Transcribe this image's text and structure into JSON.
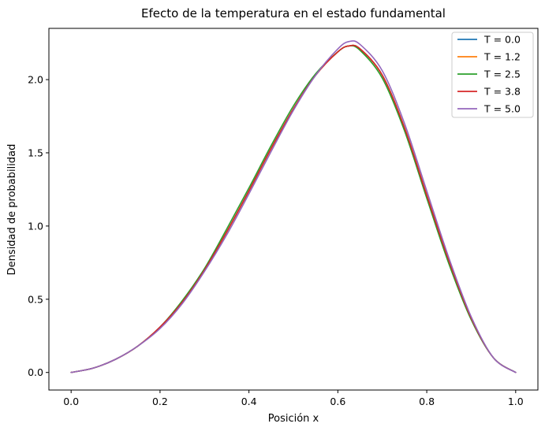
{
  "chart_data": {
    "type": "line",
    "title": "Efecto de la temperatura en el estado fundamental",
    "xlabel": "Posición x",
    "ylabel": "Densidad de probabilidad",
    "xlim": [
      -0.05,
      1.05
    ],
    "ylim": [
      -0.12,
      2.35
    ],
    "xticks": [
      0.0,
      0.2,
      0.4,
      0.6,
      0.8,
      1.0
    ],
    "xtick_labels": [
      "0.0",
      "0.2",
      "0.4",
      "0.6",
      "0.8",
      "1.0"
    ],
    "yticks": [
      0.0,
      0.5,
      1.0,
      1.5,
      2.0
    ],
    "ytick_labels": [
      "0.0",
      "0.5",
      "1.0",
      "1.5",
      "2.0"
    ],
    "grid": false,
    "legend_position": "top-right",
    "x": [
      0.0,
      0.05,
      0.1,
      0.15,
      0.2,
      0.25,
      0.3,
      0.35,
      0.4,
      0.45,
      0.5,
      0.55,
      0.6,
      0.625,
      0.65,
      0.7,
      0.75,
      0.8,
      0.85,
      0.9,
      0.95,
      1.0
    ],
    "series": [
      {
        "name": "T = 0.0",
        "color": "#1f77b4",
        "values": [
          0.0,
          0.03,
          0.09,
          0.18,
          0.31,
          0.48,
          0.7,
          0.96,
          1.24,
          1.53,
          1.8,
          2.03,
          2.19,
          2.23,
          2.21,
          2.03,
          1.67,
          1.21,
          0.76,
          0.37,
          0.1,
          0.0
        ]
      },
      {
        "name": "T = 1.2",
        "color": "#ff7f0e",
        "values": [
          0.0,
          0.03,
          0.09,
          0.18,
          0.31,
          0.48,
          0.7,
          0.96,
          1.24,
          1.53,
          1.8,
          2.03,
          2.19,
          2.23,
          2.21,
          2.03,
          1.67,
          1.21,
          0.76,
          0.37,
          0.1,
          0.0
        ]
      },
      {
        "name": "T = 2.5",
        "color": "#2ca02c",
        "values": [
          0.0,
          0.03,
          0.09,
          0.18,
          0.31,
          0.49,
          0.71,
          0.98,
          1.26,
          1.55,
          1.82,
          2.04,
          2.19,
          2.23,
          2.2,
          2.01,
          1.65,
          1.19,
          0.74,
          0.36,
          0.1,
          0.0
        ]
      },
      {
        "name": "T = 3.8",
        "color": "#d62728",
        "values": [
          0.0,
          0.03,
          0.09,
          0.18,
          0.31,
          0.48,
          0.7,
          0.96,
          1.24,
          1.53,
          1.8,
          2.03,
          2.19,
          2.23,
          2.21,
          2.03,
          1.67,
          1.21,
          0.76,
          0.37,
          0.1,
          0.0
        ]
      },
      {
        "name": "T = 5.0",
        "color": "#9467bd",
        "values": [
          0.0,
          0.03,
          0.09,
          0.18,
          0.3,
          0.47,
          0.69,
          0.94,
          1.22,
          1.51,
          1.79,
          2.03,
          2.21,
          2.26,
          2.24,
          2.06,
          1.7,
          1.24,
          0.78,
          0.38,
          0.1,
          0.0
        ]
      }
    ]
  }
}
